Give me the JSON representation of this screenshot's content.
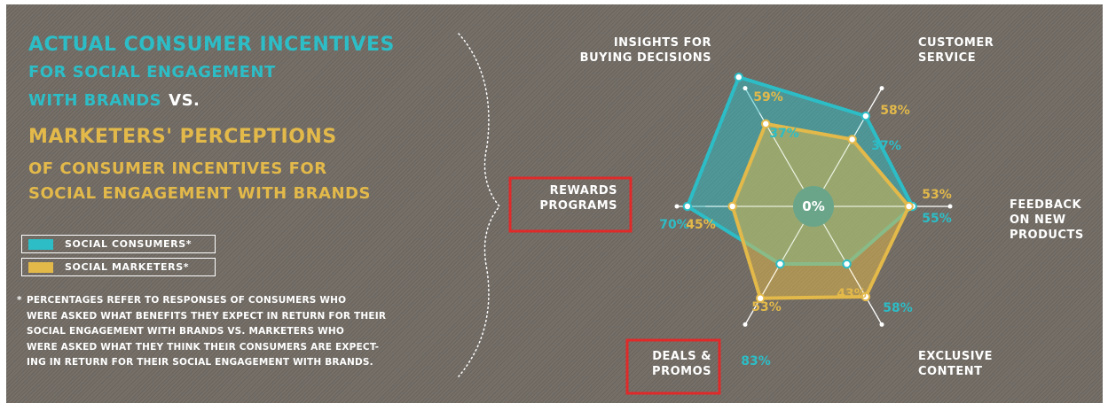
{
  "title": {
    "line1": "ACTUAL CONSUMER INCENTIVES",
    "line2": "FOR SOCIAL ENGAGEMENT",
    "line3a": "WITH BRANDS",
    "line3b": "VS.",
    "line4": "MARKETERS' PERCEPTIONS",
    "line5": "OF CONSUMER INCENTIVES FOR",
    "line6": "SOCIAL ENGAGEMENT WITH BRANDS"
  },
  "legend": [
    {
      "label": "SOCIAL CONSUMERS*",
      "color": "#2cbdc6"
    },
    {
      "label": "SOCIAL MARKETERS*",
      "color": "#e3b94a"
    }
  ],
  "footnote": {
    "star": "*",
    "lines": [
      "PERCENTAGES REFER TO RESPONSES OF CONSUMERS WHO",
      "WERE ASKED WHAT BENEFITS THEY EXPECT IN RETURN FOR THEIR",
      "SOCIAL ENGAGEMENT WITH BRANDS VS. MARKETERS WHO",
      "WERE ASKED WHAT THEY THINK THEIR CONSUMERS ARE EXPECT-",
      "ING IN RETURN FOR THEIR SOCIAL ENGAGEMENT WITH BRANDS."
    ]
  },
  "highlight_color": "#e02a2a",
  "chart_data": {
    "type": "radar",
    "center_label": "0%",
    "rmax": 100,
    "categories": [
      {
        "key": "rewards",
        "lines": [
          "REWARDS",
          "PROGRAMS"
        ],
        "highlighted": true
      },
      {
        "key": "insights",
        "lines": [
          "INSIGHTS FOR",
          "BUYING DECISIONS"
        ],
        "highlighted": false
      },
      {
        "key": "service",
        "lines": [
          "CUSTOMER",
          "SERVICE"
        ],
        "highlighted": false
      },
      {
        "key": "feedback",
        "lines": [
          "FEEDBACK",
          "ON NEW",
          "PRODUCTS"
        ],
        "highlighted": false
      },
      {
        "key": "exclusive",
        "lines": [
          "EXCLUSIVE",
          "CONTENT"
        ],
        "highlighted": false
      },
      {
        "key": "deals",
        "lines": [
          "DEALS &",
          "PROMOS"
        ],
        "highlighted": true
      }
    ],
    "series": [
      {
        "name": "SOCIAL CONSUMERS*",
        "color": "#2cbdc6",
        "values": [
          70,
          37,
          37,
          55,
          58,
          83
        ],
        "labels": [
          "70%",
          "37%",
          "37%",
          "55%",
          "58%",
          "83%"
        ]
      },
      {
        "name": "SOCIAL MARKETERS*",
        "color": "#e3b94a",
        "values": [
          45,
          59,
          58,
          53,
          43,
          53
        ],
        "labels": [
          "45%",
          "59%",
          "58%",
          "53%",
          "43%",
          "53%"
        ]
      }
    ]
  }
}
